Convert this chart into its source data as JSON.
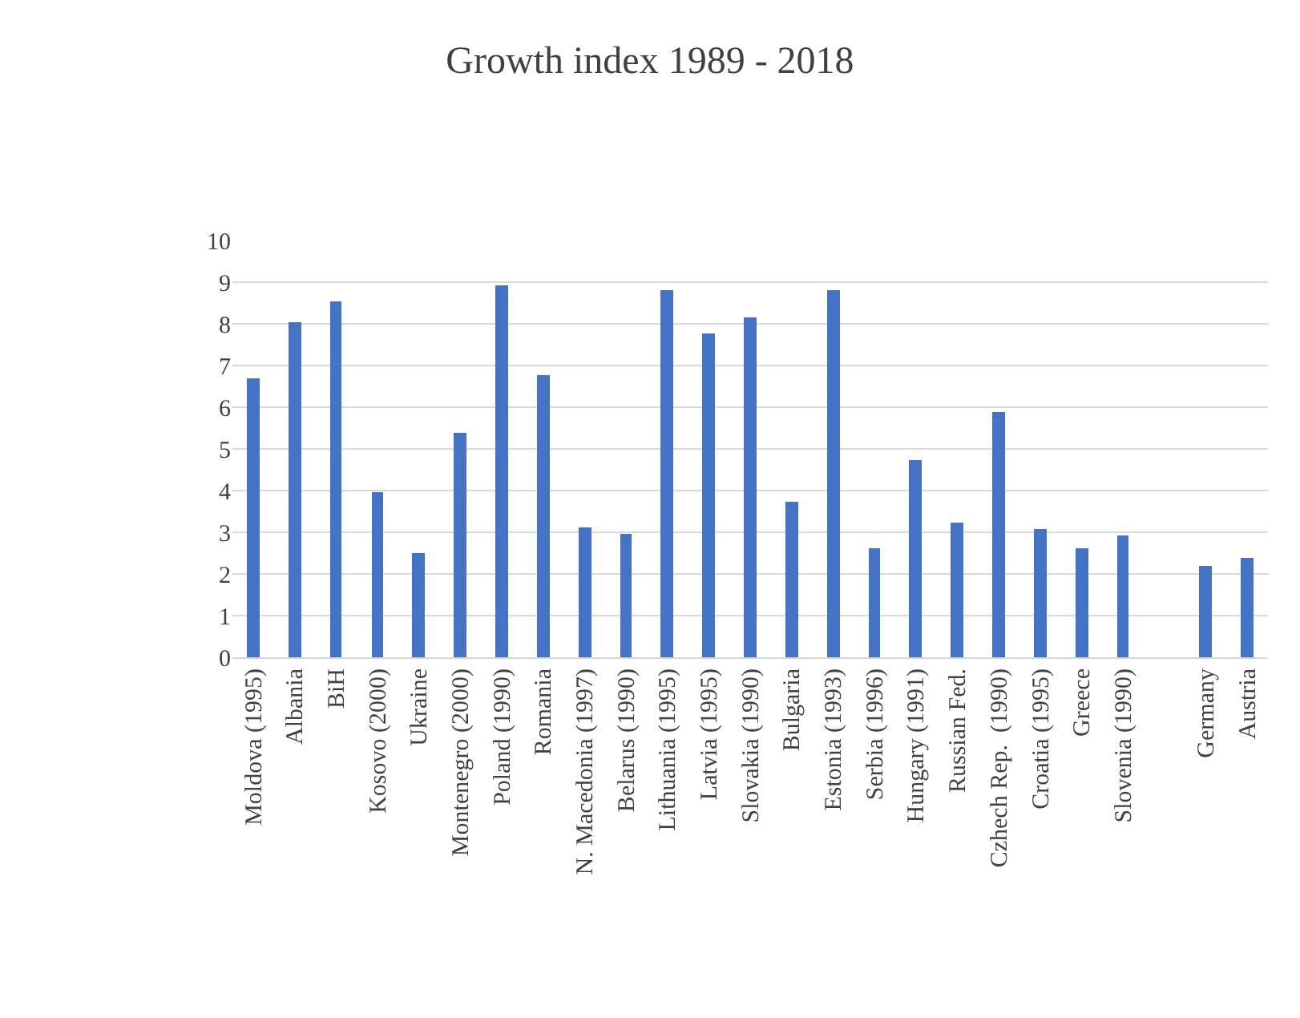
{
  "chart_data": {
    "type": "bar",
    "title": "Growth index 1989 - 2018",
    "categories": [
      "Moldova (1995)",
      "Albania",
      "BiH",
      "Kosovo (2000)",
      "Ukraine",
      "Montenegro (2000)",
      "Poland (1990)",
      "Romania",
      "N. Macedonia (1997)",
      "Belarus (1990)",
      "Lithuania (1995)",
      "Latvia (1995)",
      "Slovakia (1990)",
      "Bulgaria",
      "Estonia (1993)",
      "Serbia (1996)",
      "Hungary (1991)",
      "Russian Fed.",
      "Czhech Rep.  (1990)",
      "Croatia (1995)",
      "Greece",
      "Slovenia (1990)",
      null,
      "Germany",
      "Austria"
    ],
    "values": [
      6.7,
      8.05,
      8.55,
      3.95,
      2.5,
      5.4,
      8.92,
      6.78,
      3.1,
      2.97,
      8.82,
      7.77,
      8.17,
      3.75,
      8.8,
      2.63,
      4.75,
      3.25,
      5.87,
      3.08,
      2.6,
      2.92,
      null,
      2.2,
      2.4
    ],
    "color": "#4472c4",
    "ylim": [
      0,
      10
    ],
    "yticks": [
      0,
      1,
      2,
      3,
      4,
      5,
      6,
      7,
      8,
      9,
      10
    ],
    "grid": "y"
  }
}
